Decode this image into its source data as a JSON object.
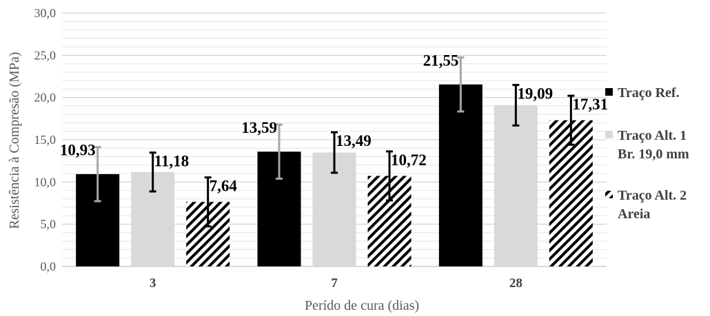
{
  "chart_data": {
    "type": "bar",
    "title": "",
    "xlabel": "Perído de cura (dias)",
    "ylabel": "Resistência à Compresão (MPa)",
    "ylim": [
      0,
      30
    ],
    "yticks": [
      "0,0",
      "5,0",
      "10,0",
      "15,0",
      "20,0",
      "25,0",
      "30,0"
    ],
    "ytick_values": [
      0,
      5,
      10,
      15,
      20,
      25,
      30
    ],
    "minor_grid_step": 1,
    "grid": true,
    "legend_position": "right",
    "categories": [
      "3",
      "7",
      "28"
    ],
    "series": [
      {
        "name": "Traço Ref.",
        "legend_lines": [
          "Traço Ref."
        ],
        "fill": "solid",
        "color": "#000000",
        "errorbar_color": "#a6a6a6",
        "values": [
          10.93,
          13.59,
          21.55
        ],
        "value_labels": [
          "10,93",
          "13,59",
          "21,55"
        ],
        "error": [
          3.2,
          3.2,
          3.2
        ]
      },
      {
        "name": "Traço Alt. 1 Br. 19,0 mm",
        "legend_lines": [
          "Traço Alt. 1",
          "Br. 19,0 mm"
        ],
        "fill": "solid",
        "color": "#d9d9d9",
        "errorbar_color": "#000000",
        "values": [
          11.18,
          13.49,
          19.09
        ],
        "value_labels": [
          "11,18",
          "13,49",
          "19,09"
        ],
        "error": [
          2.3,
          2.4,
          2.4
        ]
      },
      {
        "name": "Traço Alt. 2 Areia",
        "legend_lines": [
          "Traço Alt. 2",
          "Areia"
        ],
        "fill": "hatch",
        "color": "#000000",
        "errorbar_color": "#000000",
        "values": [
          7.64,
          10.72,
          17.31
        ],
        "value_labels": [
          "7,64",
          "10,72",
          "17,31"
        ],
        "error": [
          2.9,
          2.9,
          2.9
        ]
      }
    ]
  }
}
